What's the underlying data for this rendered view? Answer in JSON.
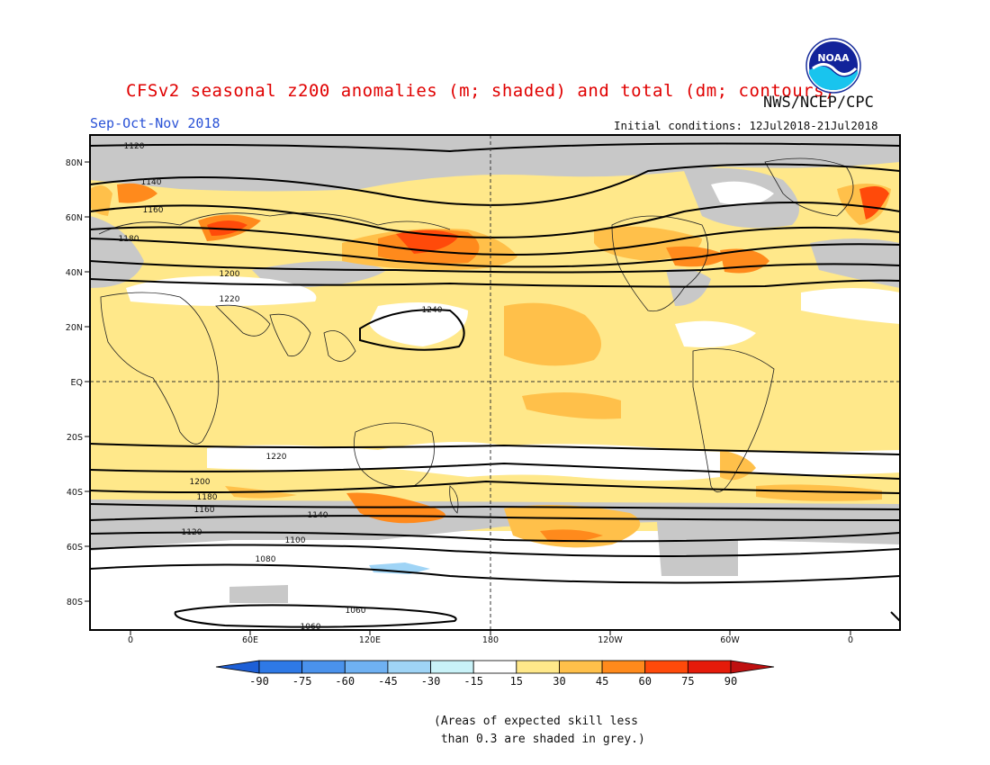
{
  "title": "CFSv2 seasonal z200 anomalies (m; shaded) and total (dm; contours)",
  "season": "Sep-Oct-Nov 2018",
  "agency": "NWS/NCEP/CPC",
  "initial_conditions": "Initial conditions: 12Jul2018-21Jul2018",
  "logo_text": "NOAA",
  "lat_labels": [
    "80N",
    "60N",
    "40N",
    "20N",
    "EQ",
    "20S",
    "40S",
    "60S",
    "80S"
  ],
  "lon_labels": [
    "0",
    "60E",
    "120E",
    "180",
    "120W",
    "60W",
    "0"
  ],
  "colorbar": {
    "ticks": [
      "-90",
      "-75",
      "-60",
      "-45",
      "-30",
      "-15",
      "15",
      "30",
      "45",
      "60",
      "75",
      "90"
    ],
    "colors": [
      "#1d5fd6",
      "#2e79e6",
      "#4a92ec",
      "#6fb1f3",
      "#9fd4f6",
      "#c9f2f8",
      "#ffffff",
      "#ffe88a",
      "#ffc04a",
      "#ff8a1c",
      "#ff4a0a",
      "#e51b0a",
      "#bf1010"
    ]
  },
  "contour_levels": [
    {
      "text": "1120"
    },
    {
      "text": "1140"
    },
    {
      "text": "1160"
    },
    {
      "text": "1180"
    },
    {
      "text": "1200"
    },
    {
      "text": "1220"
    },
    {
      "text": "1240"
    },
    {
      "text": "1220"
    },
    {
      "text": "1200"
    },
    {
      "text": "1180"
    },
    {
      "text": "1160"
    },
    {
      "text": "1140"
    },
    {
      "text": "1120"
    },
    {
      "text": "1100"
    },
    {
      "text": "1080"
    },
    {
      "text": "1060"
    },
    {
      "text": "1060"
    }
  ],
  "note": "(Areas of expected skill less\n than 0.3 are shaded in grey.)"
}
